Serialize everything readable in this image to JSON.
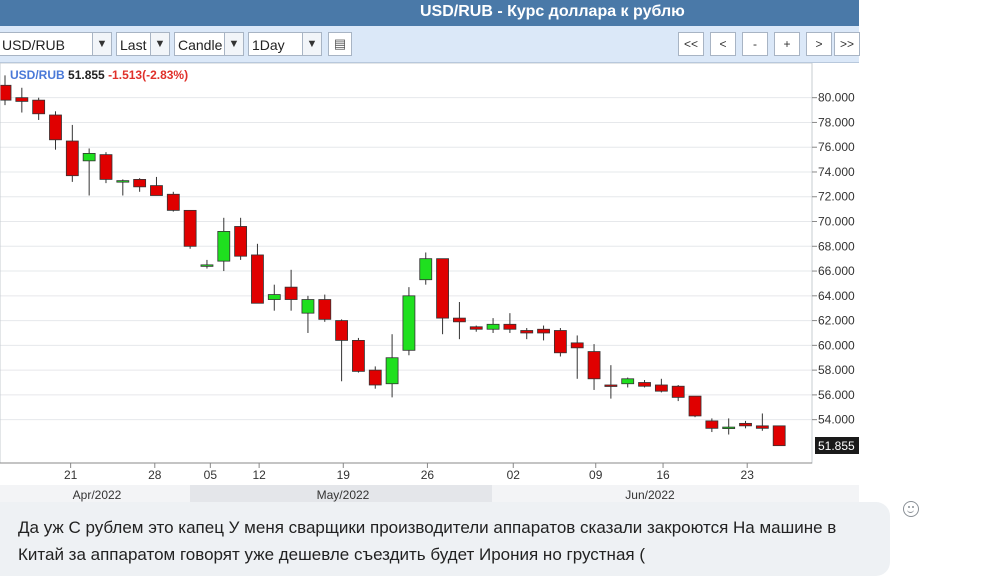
{
  "window": {
    "title": "USD/RUB - Курс доллара к рублю"
  },
  "toolbar": {
    "symbol": "USD/RUB",
    "price_field": "Last",
    "chart_type": "Candle",
    "interval": "1Day",
    "nav": [
      "<<",
      "<",
      "-",
      "+",
      ">",
      ">>"
    ]
  },
  "legend": {
    "symbol": "USD/RUB",
    "price": "51.855",
    "change": "-1.513(-2.83%)"
  },
  "current_price_label": "51.855",
  "comment": {
    "text": "Да уж С рублем это капец У меня сварщики производители аппаратов сказали закроются На машине в Китай за аппаратом говорят уже дешевле съездить будет Ирония но грустная ("
  },
  "colors": {
    "up": "#1fe01f",
    "down": "#e00000",
    "title_bg": "#4a79a8",
    "toolbar_bg": "#dbe8f8"
  },
  "chart_data": {
    "type": "candlestick",
    "y_ticks": [
      "54.000",
      "56.000",
      "58.000",
      "60.000",
      "62.000",
      "64.000",
      "66.000",
      "68.000",
      "70.000",
      "72.000",
      "74.000",
      "76.000",
      "78.000",
      "80.000"
    ],
    "x_ticks": [
      "21",
      "28",
      "05",
      "12",
      "19",
      "26",
      "02",
      "09",
      "16",
      "23"
    ],
    "months": [
      "Apr/2022",
      "May/2022",
      "Jun/2022"
    ],
    "ylim": [
      50.5,
      82.8
    ],
    "grid": true,
    "candles": [
      {
        "o": 81.0,
        "h": 81.8,
        "l": 79.4,
        "c": 79.8
      },
      {
        "o": 80.0,
        "h": 80.8,
        "l": 78.8,
        "c": 79.7
      },
      {
        "o": 79.8,
        "h": 80.0,
        "l": 78.2,
        "c": 78.7
      },
      {
        "o": 78.6,
        "h": 78.9,
        "l": 75.8,
        "c": 76.6
      },
      {
        "o": 76.5,
        "h": 77.8,
        "l": 73.2,
        "c": 73.7
      },
      {
        "o": 74.9,
        "h": 75.9,
        "l": 72.1,
        "c": 75.5
      },
      {
        "o": 75.4,
        "h": 75.6,
        "l": 73.1,
        "c": 73.4
      },
      {
        "o": 73.3,
        "h": 73.4,
        "l": 72.1,
        "c": 73.3
      },
      {
        "o": 73.4,
        "h": 73.5,
        "l": 72.4,
        "c": 72.8
      },
      {
        "o": 72.9,
        "h": 73.6,
        "l": 72.1,
        "c": 72.1
      },
      {
        "o": 72.2,
        "h": 72.4,
        "l": 70.8,
        "c": 70.9
      },
      {
        "o": 70.9,
        "h": 70.9,
        "l": 67.8,
        "c": 68.0
      },
      {
        "o": 66.5,
        "h": 66.9,
        "l": 66.2,
        "c": 66.5
      },
      {
        "o": 66.8,
        "h": 70.3,
        "l": 66.0,
        "c": 69.2
      },
      {
        "o": 69.6,
        "h": 70.3,
        "l": 66.9,
        "c": 67.2
      },
      {
        "o": 67.3,
        "h": 68.2,
        "l": 63.4,
        "c": 63.4
      },
      {
        "o": 63.7,
        "h": 64.9,
        "l": 62.8,
        "c": 64.1
      },
      {
        "o": 64.7,
        "h": 66.1,
        "l": 62.8,
        "c": 63.7
      },
      {
        "o": 62.6,
        "h": 64.0,
        "l": 61.0,
        "c": 63.7
      },
      {
        "o": 63.7,
        "h": 64.1,
        "l": 61.9,
        "c": 62.1
      },
      {
        "o": 62.0,
        "h": 62.1,
        "l": 57.1,
        "c": 60.4
      },
      {
        "o": 60.4,
        "h": 60.6,
        "l": 57.8,
        "c": 57.9
      },
      {
        "o": 58.0,
        "h": 58.3,
        "l": 56.5,
        "c": 56.8
      },
      {
        "o": 56.9,
        "h": 60.9,
        "l": 55.8,
        "c": 59.0
      },
      {
        "o": 59.6,
        "h": 64.7,
        "l": 59.2,
        "c": 64.0
      },
      {
        "o": 65.3,
        "h": 67.5,
        "l": 64.9,
        "c": 67.0
      },
      {
        "o": 67.0,
        "h": 67.0,
        "l": 60.9,
        "c": 62.2
      },
      {
        "o": 62.2,
        "h": 63.5,
        "l": 60.5,
        "c": 61.9
      },
      {
        "o": 61.5,
        "h": 61.6,
        "l": 61.1,
        "c": 61.3
      },
      {
        "o": 61.3,
        "h": 62.2,
        "l": 61.0,
        "c": 61.7
      },
      {
        "o": 61.7,
        "h": 62.6,
        "l": 61.0,
        "c": 61.3
      },
      {
        "o": 61.2,
        "h": 61.4,
        "l": 60.5,
        "c": 61.0
      },
      {
        "o": 61.3,
        "h": 61.6,
        "l": 60.4,
        "c": 61.0
      },
      {
        "o": 61.2,
        "h": 61.4,
        "l": 59.1,
        "c": 59.4
      },
      {
        "o": 60.2,
        "h": 60.8,
        "l": 57.3,
        "c": 59.8
      },
      {
        "o": 59.5,
        "h": 60.1,
        "l": 56.4,
        "c": 57.3
      },
      {
        "o": 56.8,
        "h": 58.4,
        "l": 55.7,
        "c": 56.7
      },
      {
        "o": 56.9,
        "h": 57.4,
        "l": 56.6,
        "c": 57.3
      },
      {
        "o": 57.0,
        "h": 57.2,
        "l": 56.6,
        "c": 56.7
      },
      {
        "o": 56.8,
        "h": 57.3,
        "l": 56.2,
        "c": 56.3
      },
      {
        "o": 56.7,
        "h": 56.8,
        "l": 55.5,
        "c": 55.8
      },
      {
        "o": 55.9,
        "h": 55.9,
        "l": 54.2,
        "c": 54.3
      },
      {
        "o": 53.9,
        "h": 54.1,
        "l": 53.0,
        "c": 53.3
      },
      {
        "o": 53.4,
        "h": 54.1,
        "l": 52.8,
        "c": 53.4
      },
      {
        "o": 53.7,
        "h": 53.9,
        "l": 53.3,
        "c": 53.5
      },
      {
        "o": 53.5,
        "h": 54.5,
        "l": 53.1,
        "c": 53.3
      },
      {
        "o": 53.5,
        "h": 53.5,
        "l": 51.9,
        "c": 51.9
      }
    ]
  }
}
